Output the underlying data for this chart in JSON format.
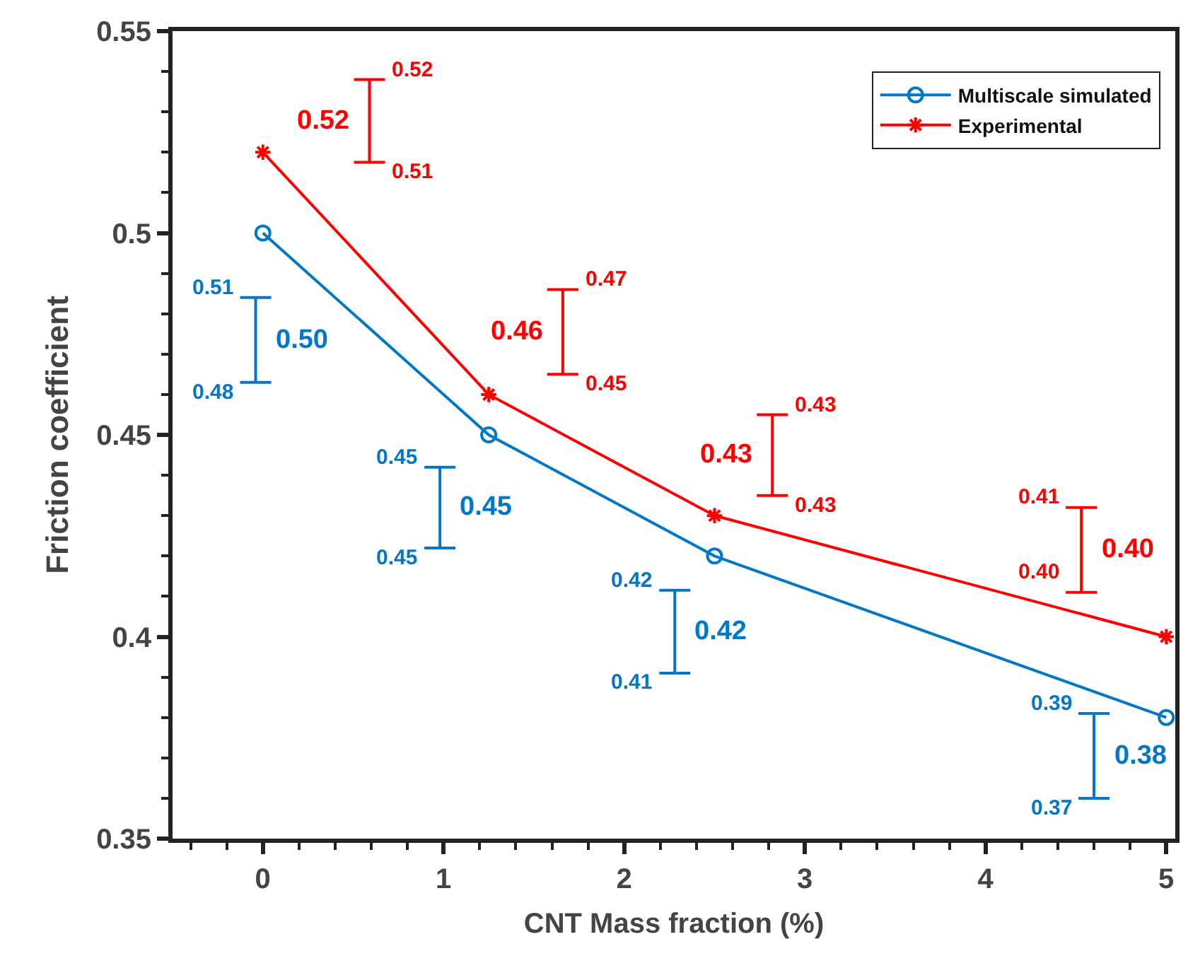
{
  "chart_data": {
    "type": "line",
    "xlabel": "CNT Mass fraction (%)",
    "ylabel": "Friction coefficient",
    "xlim": [
      -0.5,
      5.05
    ],
    "xticks": [
      0,
      1,
      2,
      3,
      4,
      5
    ],
    "ylim": [
      0.35,
      0.55
    ],
    "yticks": [
      0.35,
      0.4,
      0.45,
      0.5,
      0.55
    ],
    "legend": "top right",
    "series": [
      {
        "name": "Multiscale simulated",
        "color": "#0077c8",
        "marker": "circle",
        "x": [
          0,
          1.25,
          2.5,
          5
        ],
        "values": [
          0.5,
          0.45,
          0.42,
          0.38
        ]
      },
      {
        "name": "Experimental",
        "color": "#ff0000",
        "marker": "cross",
        "x": [
          0,
          1.25,
          2.5,
          5
        ],
        "values": [
          0.52,
          0.46,
          0.43,
          0.4
        ]
      },
      {
        "marker": "none",
        "color": "#ff0000",
        "x": [
          0.59,
          0.59
        ],
        "values": [
          0.538,
          0.5175
        ]
      },
      {
        "marker": "none",
        "color": "#ff0000",
        "x": [
          1.66,
          1.66
        ],
        "values": [
          0.486,
          0.465
        ]
      },
      {
        "marker": "none",
        "color": "#ff0000",
        "x": [
          2.82,
          2.82
        ],
        "values": [
          0.455,
          0.435
        ]
      },
      {
        "marker": "none",
        "color": "#ff0000",
        "x": [
          4.53,
          4.53
        ],
        "values": [
          0.432,
          0.411
        ]
      },
      {
        "marker": "none",
        "color": "#0077c8",
        "x": [
          -0.04,
          -0.04
        ],
        "values": [
          0.484,
          0.463
        ]
      },
      {
        "marker": "none",
        "color": "#0077c8",
        "x": [
          0.98,
          0.98
        ],
        "values": [
          0.442,
          0.422
        ]
      },
      {
        "marker": "none",
        "color": "#0077c8",
        "x": [
          2.28,
          2.28
        ],
        "values": [
          0.4115,
          0.391
        ]
      },
      {
        "marker": "none",
        "color": "#0077c8",
        "x": [
          4.6,
          4.6
        ],
        "values": [
          0.381,
          0.36
        ]
      }
    ],
    "annotations": [
      "0.52",
      "0.52",
      "0.51",
      "0.47",
      "0.46",
      "0.45",
      "0.43",
      "0.43",
      "0.43",
      "0.41",
      "0.40",
      "0.40",
      "0.51",
      "0.50",
      "0.48",
      "0.45",
      "0.45",
      "0.45",
      "0.42",
      "0.42",
      "0.41",
      "0.39",
      "0.38",
      "0.37"
    ]
  }
}
